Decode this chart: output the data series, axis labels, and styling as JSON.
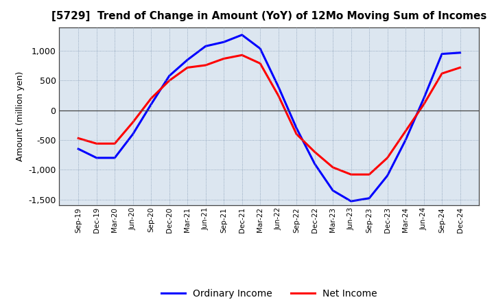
{
  "title": "[5729]  Trend of Change in Amount (YoY) of 12Mo Moving Sum of Incomes",
  "ylabel": "Amount (million yen)",
  "xlabels": [
    "Sep-19",
    "Dec-19",
    "Mar-20",
    "Jun-20",
    "Sep-20",
    "Dec-20",
    "Mar-21",
    "Jun-21",
    "Sep-21",
    "Dec-21",
    "Mar-22",
    "Jun-22",
    "Sep-22",
    "Dec-22",
    "Mar-23",
    "Jun-23",
    "Sep-23",
    "Dec-23",
    "Mar-24",
    "Jun-24",
    "Sep-24",
    "Dec-24"
  ],
  "ordinary_income": [
    -650,
    -800,
    -800,
    -400,
    100,
    580,
    850,
    1080,
    1150,
    1270,
    1040,
    400,
    -300,
    -900,
    -1350,
    -1530,
    -1480,
    -1100,
    -500,
    200,
    950,
    970
  ],
  "net_income": [
    -470,
    -560,
    -560,
    -200,
    200,
    500,
    720,
    760,
    870,
    930,
    790,
    250,
    -400,
    -700,
    -960,
    -1080,
    -1080,
    -800,
    -350,
    100,
    620,
    720
  ],
  "ordinary_color": "#0000ff",
  "net_color": "#ff0000",
  "ylim": [
    -1600,
    1400
  ],
  "yticks": [
    -1500,
    -1000,
    -500,
    0,
    500,
    1000
  ],
  "background_color": "#ffffff",
  "plot_bg_color": "#dce6f0",
  "grid_color": "#7f96b0",
  "title_fontsize": 11,
  "legend_labels": [
    "Ordinary Income",
    "Net Income"
  ]
}
